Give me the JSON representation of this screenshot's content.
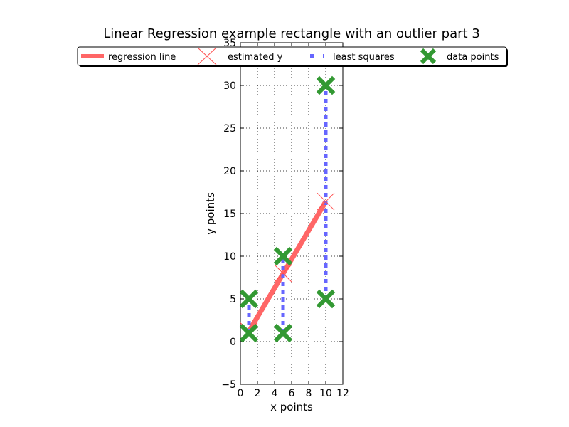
{
  "chart_data": {
    "type": "scatter",
    "title": "Linear Regression example rectangle with an outlier part 3",
    "xlabel": "x points",
    "ylabel": "y points",
    "xlim": [
      0,
      12
    ],
    "ylim": [
      -5,
      35
    ],
    "xticks": [
      "0",
      "2",
      "4",
      "6",
      "8",
      "10",
      "12"
    ],
    "yticks": [
      "−5",
      "0",
      "5",
      "10",
      "15",
      "20",
      "25",
      "30",
      "35"
    ],
    "xtick_values": [
      0,
      2,
      4,
      6,
      8,
      10,
      12
    ],
    "ytick_values": [
      -5,
      0,
      5,
      10,
      15,
      20,
      25,
      30,
      35
    ],
    "grid": true,
    "legend_position": "top",
    "legend": [
      {
        "label": "regression line",
        "style": "line",
        "color": "#ff6666"
      },
      {
        "label": "estimated y",
        "style": "x-thin",
        "color": "#ff4d4d"
      },
      {
        "label": "least squares",
        "style": "dotted",
        "color": "#6666ff"
      },
      {
        "label": "data points",
        "style": "x-thick",
        "color": "#339933"
      }
    ],
    "data_points": {
      "name": "data points",
      "x": [
        1,
        1,
        5,
        5,
        10,
        10
      ],
      "y": [
        1,
        5,
        1,
        10,
        5,
        30
      ]
    },
    "regression_line": {
      "name": "regression line",
      "x": [
        1,
        10
      ],
      "y": [
        1.2,
        16.4
      ]
    },
    "estimated_y": {
      "name": "estimated y",
      "x": [
        1,
        5,
        10
      ],
      "y": [
        1.2,
        8.0,
        16.4
      ]
    },
    "least_squares": {
      "name": "least squares",
      "segments": [
        {
          "x": 1,
          "y1": 1,
          "y2": 5
        },
        {
          "x": 5,
          "y1": 1,
          "y2": 10
        },
        {
          "x": 10,
          "y1": 5,
          "y2": 30
        }
      ]
    },
    "colors": {
      "regression": "#ff6666",
      "estimated": "#ff4d4d",
      "least_squares": "#6666ff",
      "data_points": "#339933"
    }
  }
}
